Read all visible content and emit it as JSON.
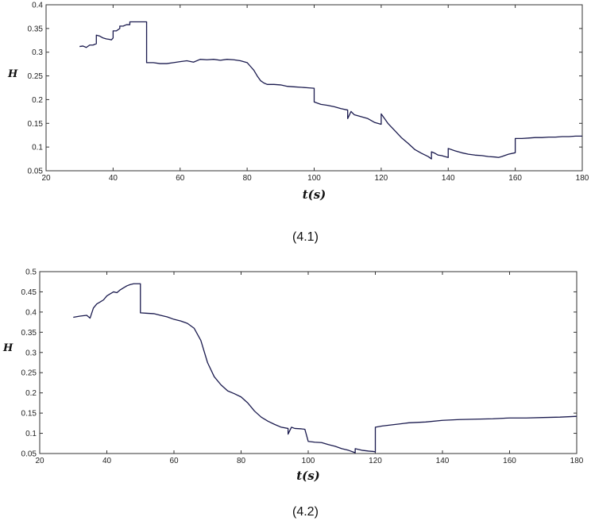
{
  "charts": [
    {
      "caption": "(4.1)",
      "chart_data": {
        "type": "line",
        "title": "",
        "xlabel": "t(s)",
        "ylabel": "H",
        "xlim": [
          20,
          180
        ],
        "ylim": [
          0.05,
          0.4
        ],
        "xticks": [
          "20",
          "40",
          "60",
          "80",
          "100",
          "120",
          "140",
          "160",
          "180"
        ],
        "yticks": [
          "0.05",
          "0.1",
          "0.15",
          "0.2",
          "0.25",
          "0.3",
          "0.35",
          "0.4"
        ],
        "grid": false,
        "line_color": "#1a1a4e",
        "x": [
          30,
          31,
          32,
          33,
          34,
          35,
          35,
          36,
          37,
          38,
          39,
          39.5,
          40,
          40,
          41,
          42,
          42,
          43,
          44,
          45,
          45,
          46,
          47,
          48,
          49,
          50,
          50,
          52,
          54,
          56,
          58,
          60,
          62,
          64,
          66,
          68,
          70,
          72,
          74,
          76,
          78,
          80,
          81,
          82,
          83,
          84,
          85,
          86,
          88,
          90,
          92,
          94,
          96,
          98,
          100,
          100,
          102,
          104,
          106,
          108,
          110,
          110,
          111,
          112,
          114,
          116,
          118,
          120,
          120,
          121,
          122,
          124,
          126,
          128,
          130,
          132,
          134,
          135,
          135,
          136,
          137,
          138,
          139,
          140,
          140,
          142,
          144,
          146,
          148,
          150,
          152,
          154,
          155,
          156,
          158,
          160,
          160,
          162,
          164,
          166,
          168,
          170,
          172,
          174,
          176,
          178,
          180
        ],
        "y": [
          0.312,
          0.313,
          0.31,
          0.315,
          0.315,
          0.318,
          0.336,
          0.334,
          0.33,
          0.328,
          0.327,
          0.326,
          0.33,
          0.345,
          0.345,
          0.35,
          0.355,
          0.355,
          0.358,
          0.358,
          0.364,
          0.364,
          0.364,
          0.364,
          0.364,
          0.364,
          0.278,
          0.278,
          0.276,
          0.276,
          0.278,
          0.28,
          0.282,
          0.279,
          0.285,
          0.284,
          0.285,
          0.283,
          0.285,
          0.284,
          0.282,
          0.278,
          0.27,
          0.262,
          0.25,
          0.24,
          0.235,
          0.232,
          0.232,
          0.231,
          0.228,
          0.227,
          0.226,
          0.225,
          0.224,
          0.195,
          0.19,
          0.188,
          0.185,
          0.181,
          0.178,
          0.16,
          0.175,
          0.168,
          0.164,
          0.16,
          0.152,
          0.148,
          0.17,
          0.16,
          0.15,
          0.135,
          0.12,
          0.108,
          0.095,
          0.087,
          0.08,
          0.075,
          0.09,
          0.087,
          0.083,
          0.082,
          0.08,
          0.078,
          0.097,
          0.092,
          0.088,
          0.085,
          0.083,
          0.082,
          0.08,
          0.079,
          0.078,
          0.08,
          0.085,
          0.088,
          0.118,
          0.118,
          0.119,
          0.12,
          0.12,
          0.121,
          0.121,
          0.122,
          0.122,
          0.123,
          0.123
        ]
      }
    },
    {
      "caption": "(4.2)",
      "chart_data": {
        "type": "line",
        "title": "",
        "xlabel": "t(s)",
        "ylabel": "H",
        "xlim": [
          20,
          180
        ],
        "ylim": [
          0.05,
          0.5
        ],
        "xticks": [
          "20",
          "40",
          "60",
          "80",
          "100",
          "120",
          "140",
          "160",
          "180"
        ],
        "yticks": [
          "0.05",
          "0.1",
          "0.15",
          "0.2",
          "0.25",
          "0.3",
          "0.35",
          "0.4",
          "0.45",
          "0.5"
        ],
        "grid": false,
        "line_color": "#1a1a4e",
        "x": [
          30,
          32,
          34,
          35,
          36,
          37,
          38,
          39,
          40,
          41,
          42,
          43,
          44,
          45,
          46,
          47,
          48,
          49,
          50,
          50,
          52,
          54,
          56,
          58,
          60,
          62,
          64,
          66,
          68,
          70,
          72,
          74,
          76,
          78,
          80,
          82,
          84,
          86,
          88,
          90,
          92,
          94,
          94,
          95,
          96,
          98,
          99,
          100,
          100,
          102,
          104,
          106,
          108,
          110,
          112,
          114,
          114,
          115,
          116,
          118,
          119.5,
          120,
          120,
          122,
          124,
          126,
          128,
          130,
          135,
          140,
          145,
          150,
          155,
          160,
          165,
          170,
          175,
          180
        ],
        "y": [
          0.387,
          0.39,
          0.392,
          0.385,
          0.41,
          0.42,
          0.425,
          0.43,
          0.44,
          0.445,
          0.45,
          0.448,
          0.455,
          0.46,
          0.465,
          0.468,
          0.47,
          0.47,
          0.47,
          0.398,
          0.397,
          0.396,
          0.392,
          0.388,
          0.382,
          0.378,
          0.372,
          0.36,
          0.33,
          0.275,
          0.24,
          0.22,
          0.205,
          0.198,
          0.19,
          0.175,
          0.155,
          0.14,
          0.13,
          0.122,
          0.115,
          0.112,
          0.098,
          0.115,
          0.112,
          0.111,
          0.11,
          0.08,
          0.08,
          0.078,
          0.077,
          0.072,
          0.068,
          0.062,
          0.058,
          0.052,
          0.062,
          0.06,
          0.058,
          0.056,
          0.055,
          0.054,
          0.115,
          0.118,
          0.12,
          0.122,
          0.124,
          0.126,
          0.128,
          0.132,
          0.134,
          0.135,
          0.136,
          0.138,
          0.138,
          0.139,
          0.14,
          0.142
        ]
      }
    }
  ]
}
